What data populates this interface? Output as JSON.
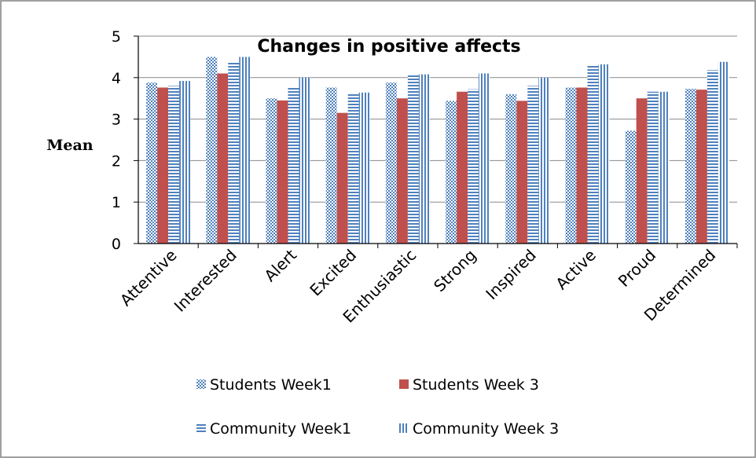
{
  "chart_data": {
    "type": "bar",
    "title": "Changes in positive affects",
    "xlabel": "",
    "ylabel": "Mean",
    "ylim": [
      0,
      5
    ],
    "yticks": [
      0,
      1,
      2,
      3,
      4,
      5
    ],
    "grid": true,
    "legend_position": "bottom",
    "categories": [
      "Attentive",
      "Interested",
      "Alert",
      "Excited",
      "Enthusiastic",
      "Strong",
      "Inspired",
      "Active",
      "Proud",
      "Determined"
    ],
    "series": [
      {
        "name": "Students Week1",
        "pattern": "checker",
        "color": "#4f81bd",
        "values": [
          3.88,
          4.5,
          3.5,
          3.76,
          3.88,
          3.44,
          3.6,
          3.76,
          2.72,
          3.73
        ]
      },
      {
        "name": "Students Week 3",
        "pattern": "solid",
        "color": "#c0504d",
        "values": [
          3.76,
          4.1,
          3.45,
          3.15,
          3.5,
          3.66,
          3.44,
          3.76,
          3.5,
          3.71
        ]
      },
      {
        "name": "Community  Week1",
        "pattern": "horizontal-lines",
        "color": "#4f81bd",
        "values": [
          3.8,
          4.36,
          3.75,
          3.6,
          4.08,
          3.72,
          3.8,
          4.28,
          3.66,
          4.18
        ]
      },
      {
        "name": "Community Week 3",
        "pattern": "vertical-lines",
        "color": "#4f81bd",
        "values": [
          3.92,
          4.5,
          4.0,
          3.64,
          4.08,
          4.1,
          4.0,
          4.32,
          3.66,
          4.38
        ]
      }
    ]
  }
}
